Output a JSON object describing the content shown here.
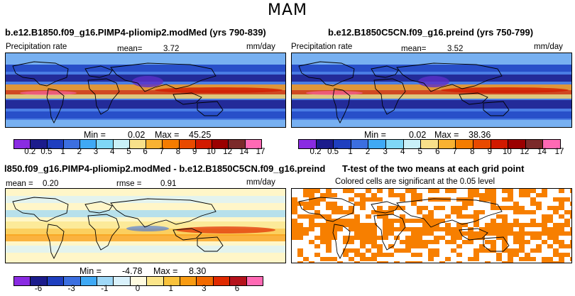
{
  "figure": {
    "season": "MAM"
  },
  "panels": [
    {
      "title": "b.e12.B1850.f09_g16.PIMP4-pliomip2.modMed (yrs 790-839)",
      "left_label": "Precipitation rate",
      "stat_label": "mean=",
      "stat_value": "3.72",
      "units": "mm/day",
      "min_label": "Min =",
      "min_value": "0.02",
      "max_label": "Max =",
      "max_value": "45.25"
    },
    {
      "title": "b.e12.B1850C5CN.f09_g16.preind (yrs 750-799)",
      "left_label": "Precipitation rate",
      "stat_label": "mean=",
      "stat_value": "3.52",
      "units": "mm/day",
      "min_label": "Min =",
      "min_value": "0.02",
      "max_label": "Max =",
      "max_value": "38.36"
    },
    {
      "title": "l850.f09_g16.PIMP4-pliomip2.modMed - b.e12.B1850C5CN.f09_g16.preind",
      "left_label": "mean =",
      "left_value": "0.20",
      "stat_label": "rmse =",
      "stat_value": "0.91",
      "units": "mm/day",
      "min_label": "Min =",
      "min_value": "-4.78",
      "max_label": "Max =",
      "max_value": "8.30"
    },
    {
      "title": "T-test of the two means at each grid point",
      "subtitle": "Colored cells are significant at the 0.05 level"
    }
  ],
  "colorbars": {
    "precip": {
      "colors": [
        "#8a2be2",
        "#1c1c8c",
        "#1f3fbf",
        "#3c6fe0",
        "#3fa9f5",
        "#7fd7f7",
        "#c9f0f8",
        "#f7e08a",
        "#f9b232",
        "#f57c00",
        "#e84a00",
        "#d11a00",
        "#9b0000",
        "#7b2a2a",
        "#ff69b4"
      ],
      "ticks": [
        "0.2",
        "0.5",
        "1",
        "2",
        "3",
        "4",
        "5",
        "6",
        "7",
        "8",
        "9",
        "10",
        "12",
        "14",
        "17"
      ]
    },
    "diff": {
      "colors": [
        "#8a2be2",
        "#1c1c8c",
        "#1f3fbf",
        "#3c6fe0",
        "#3fa9f5",
        "#9fd8f7",
        "#d9f1fb",
        "#fffbe0",
        "#fbe58a",
        "#f9c23c",
        "#f89b12",
        "#f26a00",
        "#e02a00",
        "#b5121b",
        "#ff69b4"
      ],
      "ticks": [
        "-6",
        "-3",
        "-1",
        "0",
        "1",
        "3",
        "6"
      ]
    }
  },
  "chart_data": [
    {
      "type": "heatmap",
      "title": "b.e12.B1850.f09_g16.PIMP4-pliomip2.modMed (yrs 790-839)",
      "variable": "Precipitation rate",
      "units": "mm/day",
      "mean": 3.72,
      "min": 0.02,
      "max": 45.25,
      "contour_levels": [
        0.2,
        0.5,
        1,
        2,
        3,
        4,
        5,
        6,
        7,
        8,
        9,
        10,
        12,
        14,
        17
      ]
    },
    {
      "type": "heatmap",
      "title": "b.e12.B1850C5CN.f09_g16.preind (yrs 750-799)",
      "variable": "Precipitation rate",
      "units": "mm/day",
      "mean": 3.52,
      "min": 0.02,
      "max": 38.36,
      "contour_levels": [
        0.2,
        0.5,
        1,
        2,
        3,
        4,
        5,
        6,
        7,
        8,
        9,
        10,
        12,
        14,
        17
      ]
    },
    {
      "type": "heatmap",
      "title": "l850.f09_g16.PIMP4-pliomip2.modMed - b.e12.B1850C5CN.f09_g16.preind",
      "units": "mm/day",
      "mean": 0.2,
      "rmse": 0.91,
      "min": -4.78,
      "max": 8.3,
      "contour_levels": [
        -6,
        -3,
        -1,
        0,
        1,
        3,
        6
      ]
    },
    {
      "type": "heatmap",
      "title": "T-test of the two means at each grid point",
      "subtitle": "Colored cells are significant at the 0.05 level",
      "significance_level": 0.05
    }
  ]
}
